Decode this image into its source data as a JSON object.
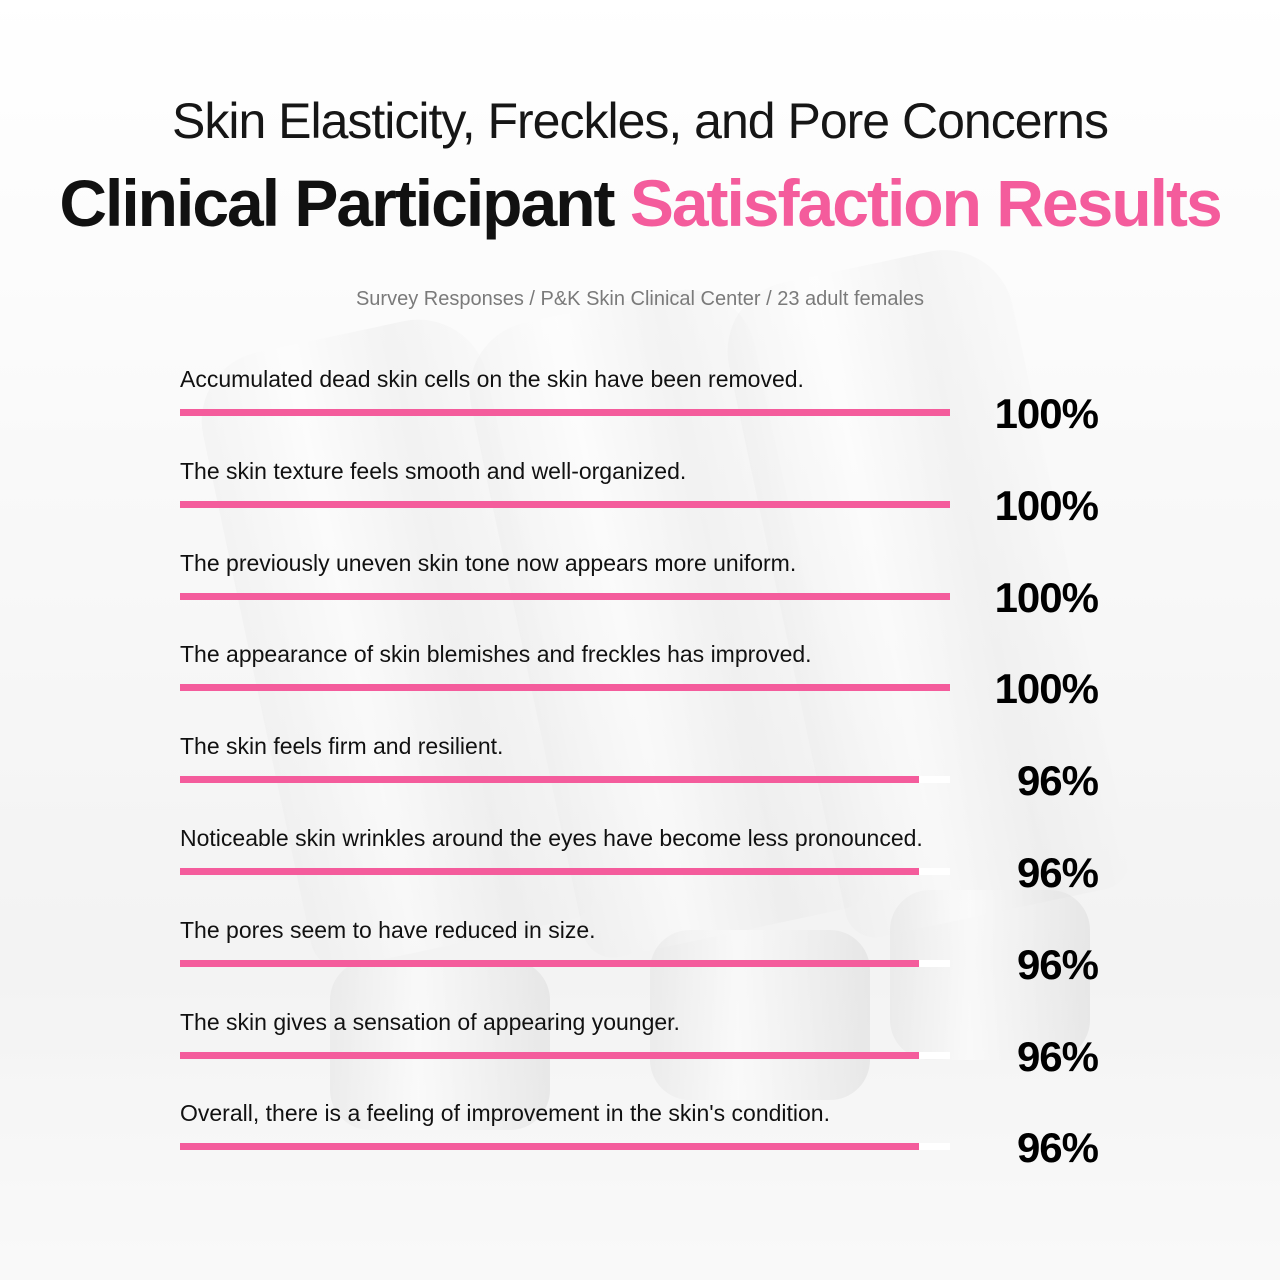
{
  "header": {
    "headline_line1": "Skin Elasticity, Freckles, and Pore Concerns",
    "headline_line2_main": "Clinical Participant ",
    "headline_line2_accent": "Satisfaction Results",
    "subtitle": "Survey Responses / P&K Skin Clinical Center / 23 adult females"
  },
  "colors": {
    "accent": "#f45c9c",
    "text": "#111111",
    "subtitle": "#7a7a7a",
    "track": "#ffffff"
  },
  "chart_data": {
    "type": "bar",
    "orientation": "horizontal",
    "title": "Clinical Participant Satisfaction Results",
    "xlim": [
      0,
      100
    ],
    "categories": [
      "Accumulated dead skin cells on the skin have been removed.",
      "The skin texture feels smooth and well-organized.",
      "The previously uneven skin tone now appears more uniform.",
      "The appearance of skin blemishes and freckles has improved.",
      "The skin feels firm and resilient.",
      "Noticeable skin wrinkles around the eyes have become less pronounced.",
      "The pores seem to have reduced in size.",
      "The skin gives a sensation of appearing younger.",
      "Overall, there is a feeling of improvement in the skin's condition."
    ],
    "values": [
      100,
      100,
      100,
      100,
      96,
      96,
      96,
      96,
      96
    ],
    "value_labels": [
      "100%",
      "100%",
      "100%",
      "100%",
      "96%",
      "96%",
      "96%",
      "96%",
      "96%"
    ]
  }
}
